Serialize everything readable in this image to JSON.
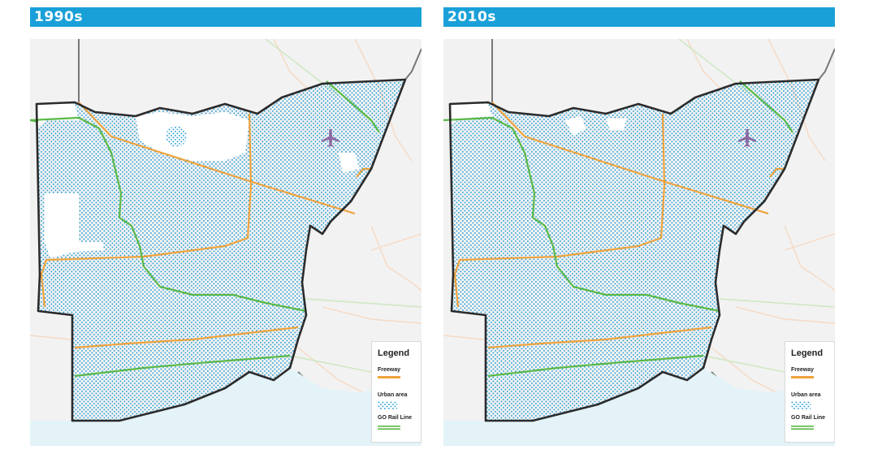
{
  "colors": {
    "title_bar": "#1aa0d8",
    "urban_dot": "#2a9fd6",
    "freeway": "#f0a23c",
    "go_rail": "#5ab947",
    "boundary": "#2b2b2b",
    "water": "#e3f3f8",
    "land": "#f2f2f2",
    "airport_icon": "#8b6aa3"
  },
  "panels": [
    {
      "title": "1990s",
      "legend": {
        "title": "Legend",
        "freeway": "Freeway",
        "urban": "Urban area",
        "rail": "GO Rail Line"
      },
      "icons": [
        "airplane-icon"
      ]
    },
    {
      "title": "2010s",
      "legend": {
        "title": "Legend",
        "freeway": "Freeway",
        "urban": "Urban area",
        "rail": "GO Rail Line"
      },
      "icons": [
        "airplane-icon"
      ]
    }
  ]
}
